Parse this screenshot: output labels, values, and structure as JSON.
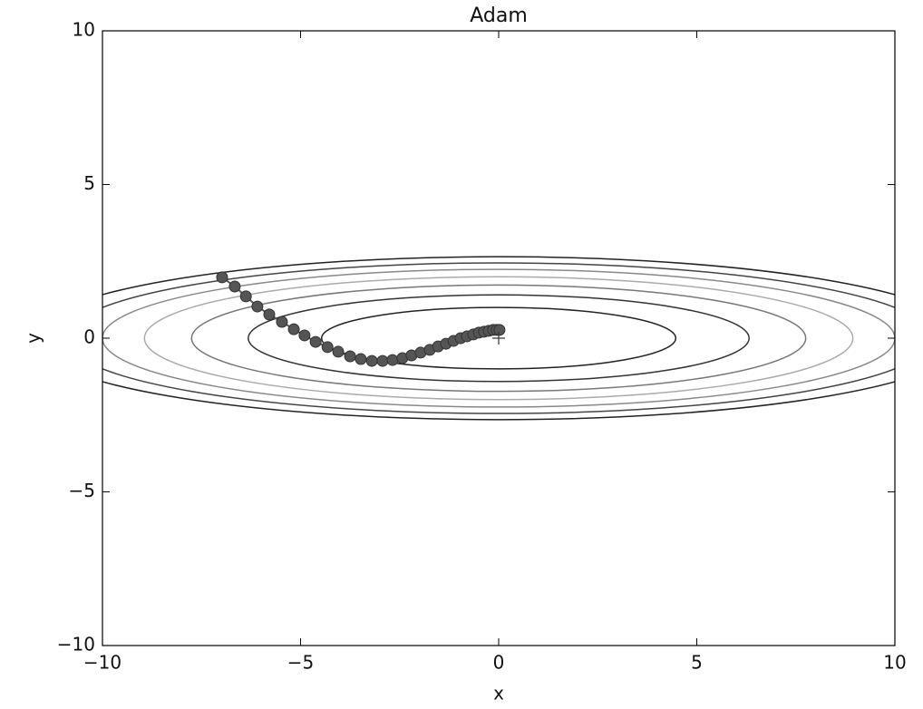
{
  "chart_data": {
    "type": "line",
    "title": "Adam",
    "xlabel": "x",
    "ylabel": "y",
    "xlim": [
      -10,
      10
    ],
    "ylim": [
      -10,
      10
    ],
    "xticks": [
      {
        "value": -10,
        "label": "−10"
      },
      {
        "value": -5,
        "label": "−5"
      },
      0,
      5,
      10
    ],
    "yticks": [
      {
        "value": -10,
        "label": "−10"
      },
      {
        "value": -5,
        "label": "−5"
      },
      0,
      5,
      10
    ],
    "grid": false,
    "color": "#555555",
    "x": [
      -6.98,
      -6.66,
      -6.38,
      -6.09,
      -5.79,
      -5.47,
      -5.17,
      -4.9,
      -4.62,
      -4.32,
      -4.05,
      -3.75,
      -3.48,
      -3.2,
      -2.93,
      -2.68,
      -2.43,
      -2.2,
      -1.97,
      -1.74,
      -1.53,
      -1.33,
      -1.14,
      -0.96,
      -0.8,
      -0.64,
      -0.5,
      -0.37,
      -0.25,
      -0.14,
      -0.05,
      0.02
    ],
    "values": [
      1.98,
      1.68,
      1.36,
      1.03,
      0.77,
      0.53,
      0.29,
      0.09,
      -0.12,
      -0.29,
      -0.44,
      -0.59,
      -0.68,
      -0.74,
      -0.74,
      -0.71,
      -0.65,
      -0.56,
      -0.47,
      -0.38,
      -0.27,
      -0.18,
      -0.09,
      0,
      0.06,
      0.12,
      0.18,
      0.21,
      0.24,
      0.27,
      0.27,
      0.27
    ],
    "marker_point": {
      "x": 0,
      "y": 0
    },
    "contours": [
      {
        "rx": 4.47,
        "ry": 1.0,
        "color": "#222222"
      },
      {
        "rx": 6.32,
        "ry": 1.41,
        "color": "#333333"
      },
      {
        "rx": 7.75,
        "ry": 1.73,
        "color": "#777777"
      },
      {
        "rx": 8.94,
        "ry": 2.0,
        "color": "#aaaaaa"
      },
      {
        "rx": 10.0,
        "ry": 2.24,
        "color": "#888888"
      },
      {
        "rx": 10.95,
        "ry": 2.45,
        "color": "#444444"
      },
      {
        "rx": 11.83,
        "ry": 2.65,
        "color": "#222222"
      }
    ]
  }
}
